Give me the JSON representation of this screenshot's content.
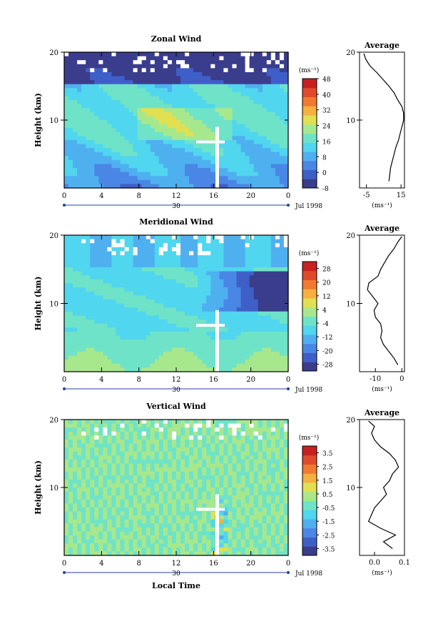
{
  "chart_data": [
    {
      "type": "heatmap",
      "title": "Zonal Wind",
      "ylabel": "Height (km)",
      "y_ticks": [
        "20",
        "10"
      ],
      "ylim": [
        0,
        20
      ],
      "x_ticks": [
        "0",
        "4",
        "8",
        "12",
        "16",
        "20",
        "0"
      ],
      "date_mark": "30",
      "date_label": "Jul 1998",
      "colorbar": {
        "unit": "(ms⁻¹)",
        "ticks": [
          "48",
          "40",
          "32",
          "24",
          "16",
          "8",
          "0",
          "-8"
        ],
        "range": [
          -8,
          48
        ]
      },
      "profile": {
        "title": "Average",
        "x_ticks": [
          "-5",
          "15"
        ],
        "xlim": [
          -9,
          17
        ],
        "unit": "(ms⁻¹)",
        "y_ticks": [
          "20",
          "10"
        ],
        "heights": [
          1,
          2,
          3,
          4,
          5,
          6,
          7,
          8,
          9,
          10,
          11,
          12,
          13,
          14,
          15,
          16,
          17,
          18,
          19,
          19.8
        ],
        "values": [
          8,
          8.5,
          9,
          10,
          11,
          12,
          13.5,
          14.5,
          15.5,
          16.5,
          16.5,
          15.5,
          13,
          11,
          8,
          4.5,
          1,
          -3,
          -5.5,
          -6.5
        ]
      }
    },
    {
      "type": "heatmap",
      "title": "Meridional Wind",
      "ylabel": "Height (km)",
      "y_ticks": [
        "20",
        "10"
      ],
      "ylim": [
        0,
        20
      ],
      "x_ticks": [
        "0",
        "4",
        "8",
        "12",
        "16",
        "20",
        "0"
      ],
      "date_mark": "30",
      "date_label": "Jul 1998",
      "colorbar": {
        "unit": "(ms⁻¹)",
        "ticks": [
          "28",
          "20",
          "12",
          "4",
          "-4",
          "-12",
          "-20",
          "-28"
        ],
        "range": [
          -32,
          32
        ]
      },
      "profile": {
        "title": "Average",
        "x_ticks": [
          "-10",
          "0"
        ],
        "xlim": [
          -16,
          1
        ],
        "unit": "(ms⁻¹)",
        "y_ticks": [
          "20",
          "10"
        ],
        "heights": [
          1,
          2,
          3,
          4,
          5,
          6,
          7,
          8,
          9,
          10,
          11,
          12,
          13,
          14,
          15,
          16,
          17,
          18,
          19,
          19.8
        ],
        "values": [
          -1.5,
          -3,
          -5,
          -7,
          -8,
          -7.5,
          -8,
          -10,
          -10.5,
          -9,
          -11,
          -13,
          -12.5,
          -9,
          -8,
          -6.5,
          -5,
          -3,
          -1.5,
          0
        ]
      }
    },
    {
      "type": "heatmap",
      "title": "Vertical Wind",
      "ylabel": "Height (km)",
      "xlabel": "Local Time",
      "y_ticks": [
        "20",
        "10"
      ],
      "ylim": [
        0,
        20
      ],
      "x_ticks": [
        "0",
        "4",
        "8",
        "12",
        "16",
        "20",
        "0"
      ],
      "date_mark": "30",
      "date_label": "Jul 1998",
      "colorbar": {
        "unit": "(ms⁻¹)",
        "ticks": [
          "3.5",
          "2.5",
          "1.5",
          "0.5",
          "-0.5",
          "-1.5",
          "-2.5",
          "-3.5"
        ],
        "range": [
          -4,
          4
        ]
      },
      "profile": {
        "title": "Average",
        "x_ticks": [
          "0.0",
          "0.1"
        ],
        "xlim": [
          -0.05,
          0.1
        ],
        "unit": "(ms⁻¹)",
        "y_ticks": [
          "20",
          "10"
        ],
        "heights": [
          1,
          2,
          3,
          4,
          5,
          6,
          7,
          8,
          9,
          10,
          11,
          12,
          13,
          14,
          15,
          16,
          17,
          18,
          19,
          19.8
        ],
        "values": [
          0.06,
          0.03,
          0.07,
          0.02,
          -0.02,
          -0.01,
          0.0,
          0.02,
          0.04,
          0.03,
          0.05,
          0.06,
          0.08,
          0.07,
          0.05,
          0.02,
          0.0,
          -0.01,
          0.0,
          -0.02
        ]
      }
    }
  ]
}
